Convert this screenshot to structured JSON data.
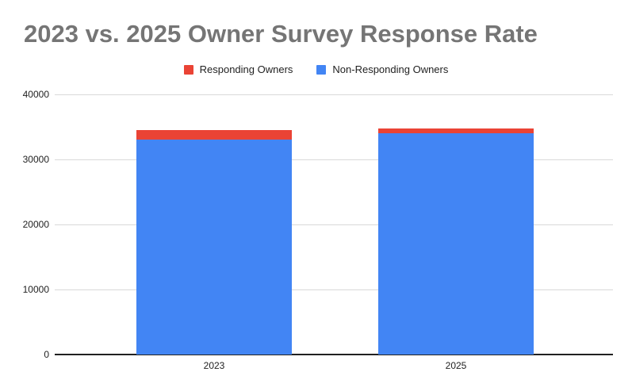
{
  "chart_data": {
    "type": "bar",
    "stacked": true,
    "title": "2023 vs. 2025 Owner Survey Response Rate",
    "categories": [
      "2023",
      "2025"
    ],
    "series": [
      {
        "name": "Responding Owners",
        "color": "#EA4335",
        "values": [
          1460,
          730
        ]
      },
      {
        "name": "Non-Responding Owners",
        "color": "#4285F4",
        "values": [
          33050,
          34000
        ]
      }
    ],
    "stack_order_bottom_to_top": [
      "Non-Responding Owners",
      "Responding Owners"
    ],
    "ylim": [
      0,
      40000
    ],
    "yticks": [
      0,
      10000,
      20000,
      30000,
      40000
    ],
    "ytick_labels": [
      "0",
      "10000",
      "20000",
      "30000",
      "40000"
    ],
    "xlabel": "",
    "ylabel": "",
    "grid": true,
    "legend_position": "top"
  },
  "styles": {
    "background": "#ffffff",
    "title_color": "#757575",
    "grid_color": "#d9d9d9",
    "axis_line_color": "#212121",
    "tick_label_color": "#222222",
    "legend_text_color": "#1f1f1f",
    "responding_color": "#EA4335",
    "non_responding_color": "#4285F4"
  }
}
